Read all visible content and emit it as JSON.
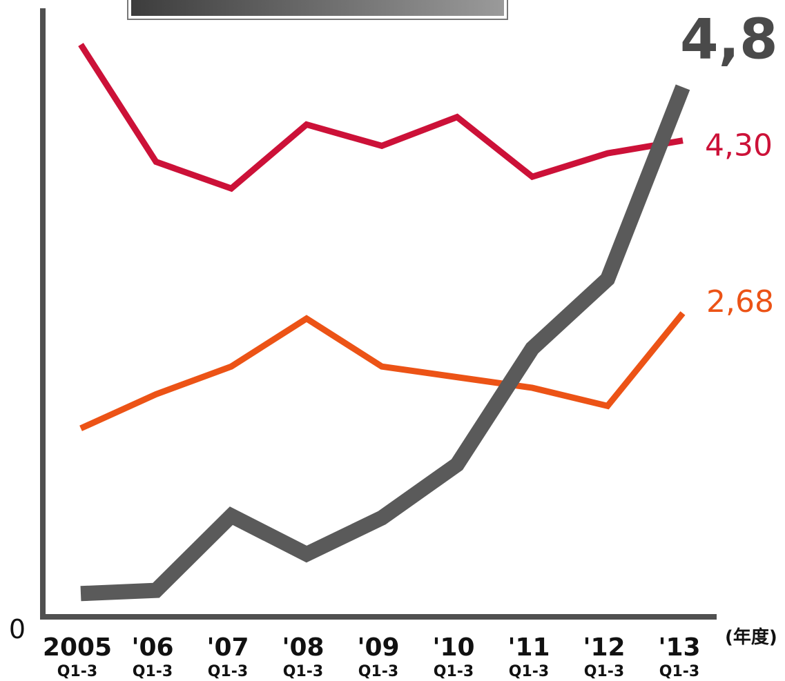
{
  "chart_data": {
    "type": "line",
    "title": "",
    "xlabel": "(年度)",
    "ylabel": "",
    "y_origin_label": "0",
    "categories": [
      "2005",
      "'06",
      "'07",
      "'08",
      "'09",
      "'10",
      "'11",
      "'12",
      "'13"
    ],
    "category_sublabels": [
      "Q1-3",
      "Q1-3",
      "Q1-3",
      "Q1-3",
      "Q1-3",
      "Q1-3",
      "Q1-3",
      "Q1-3",
      "Q1-3"
    ],
    "ylim": [
      0,
      5000
    ],
    "grid": false,
    "series": [
      {
        "color": "#cc1138",
        "values": [
          5200,
          4100,
          3850,
          4450,
          4250,
          4520,
          3960,
          4180,
          4300
        ],
        "end_label": "4,30"
      },
      {
        "color": "#ec5316",
        "values": [
          1600,
          1920,
          2180,
          2630,
          2180,
          2080,
          1980,
          1810,
          2680
        ],
        "end_label": "2,68"
      },
      {
        "color": "#5a5a5a",
        "values": [
          50,
          80,
          780,
          420,
          760,
          1260,
          2350,
          3000,
          4800
        ],
        "end_label": "4,8"
      }
    ]
  }
}
